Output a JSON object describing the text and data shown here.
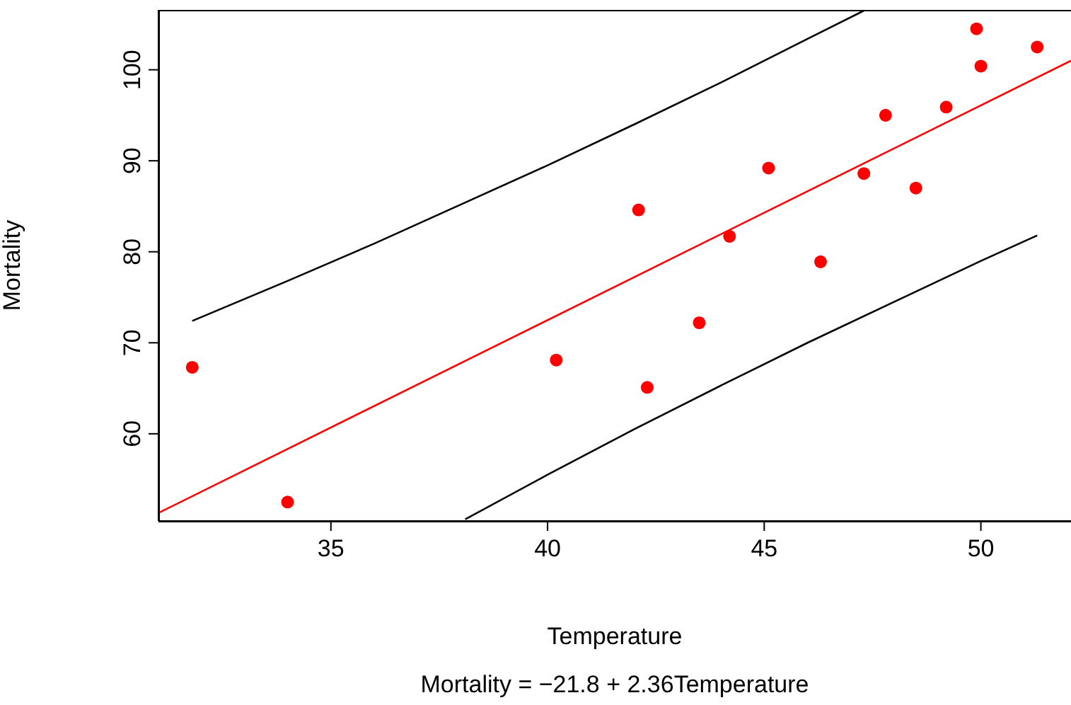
{
  "chart_data": {
    "type": "scatter",
    "xlabel": "Temperature",
    "ylabel": "Mortality",
    "annotations": [
      "Mortality = −21.8 + 2.36Temperature"
    ],
    "xlim": [
      31.02,
      52.08
    ],
    "ylim": [
      50.42,
      106.58
    ],
    "xticks": [
      35,
      40,
      45,
      50
    ],
    "yticks": [
      60,
      70,
      80,
      90,
      100
    ],
    "grid": false,
    "series": [
      {
        "type": "line",
        "color": "#000000",
        "marker": "none",
        "x": [
          31.8,
          34,
          36,
          38,
          40,
          42,
          44,
          46,
          47.3
        ],
        "values": [
          72.4,
          76.8,
          80.9,
          85.2,
          89.5,
          94.0,
          98.6,
          103.4,
          106.5
        ]
      },
      {
        "type": "line",
        "color": "#000000",
        "marker": "none",
        "x": [
          38.1,
          40,
          42,
          44,
          46,
          48,
          50,
          51.3
        ],
        "values": [
          50.6,
          55.5,
          60.5,
          65.3,
          70.0,
          74.5,
          79.0,
          81.8
        ]
      },
      {
        "type": "line",
        "color": "#ff0000",
        "marker": "none",
        "x": [
          31.02,
          52.08
        ],
        "values": [
          51.3,
          101.0
        ]
      },
      {
        "color": "#ff0000",
        "marker": "circle",
        "x": [
          51.3,
          49.9,
          50.0,
          49.2,
          48.5,
          47.8,
          47.3,
          45.1,
          46.3,
          42.1,
          44.2,
          43.5,
          42.3,
          40.2,
          31.8,
          34.0
        ],
        "values": [
          102.5,
          104.5,
          100.4,
          95.9,
          87.0,
          95.0,
          88.6,
          89.2,
          78.9,
          84.6,
          81.7,
          72.2,
          65.1,
          68.1,
          67.3,
          52.5
        ]
      }
    ]
  }
}
